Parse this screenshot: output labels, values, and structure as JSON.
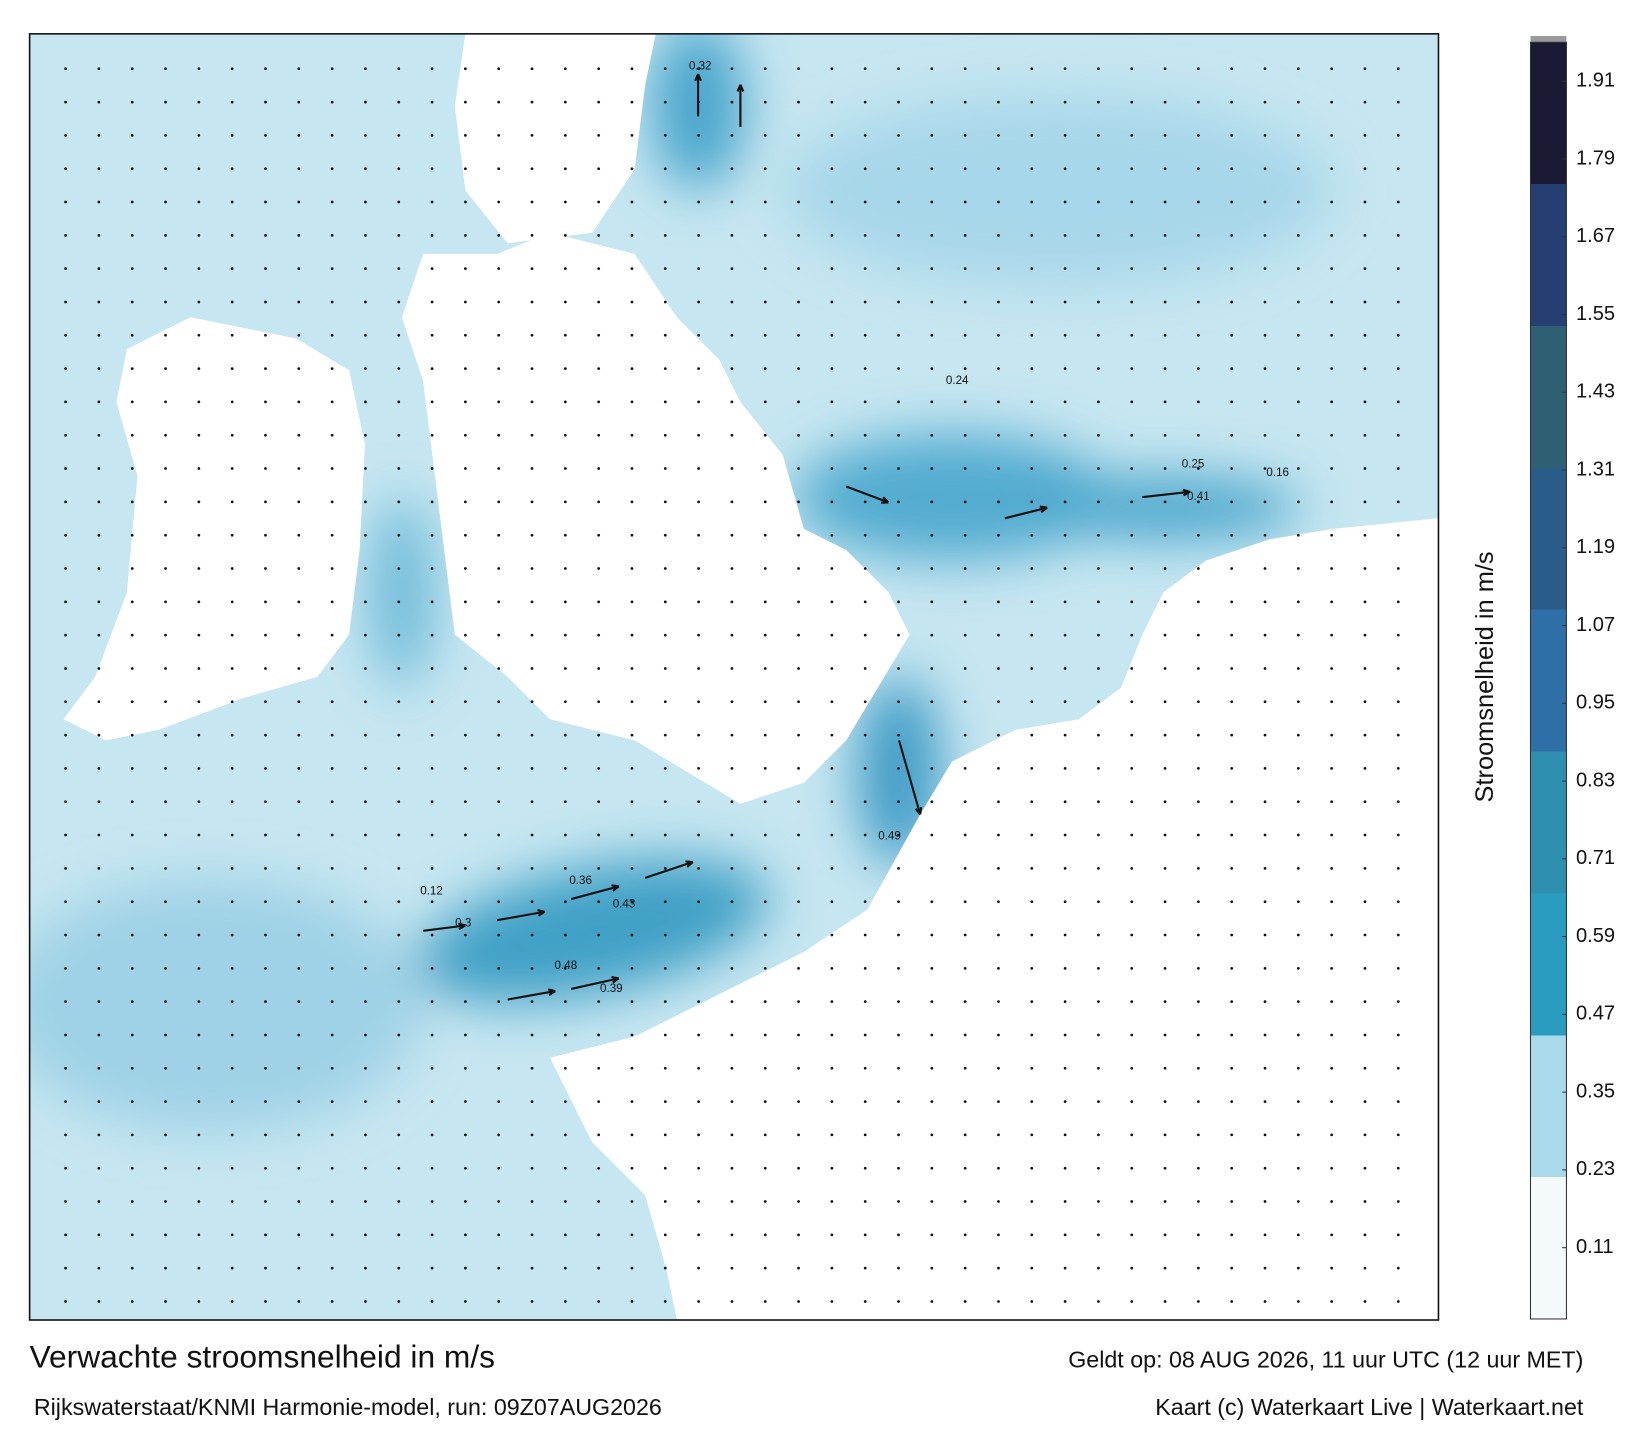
{
  "header": {
    "title": "Verwachte stroomsnelheid in m/s",
    "subtitle": "Rijkswaterstaat/KNMI Harmonie-model, run: 09Z07AUG2026",
    "valid": "Geldt op: 08 AUG 2026, 11 uur UTC (12 uur MET)",
    "credit": "Kaart (c) Waterkaart Live | Waterkaart.net"
  },
  "colorbar": {
    "label": "Stroomsnelheid in m/s",
    "ylim": [
      0,
      1.97
    ],
    "yticks": [
      0.11,
      0.23,
      0.35,
      0.47,
      0.59,
      0.71,
      0.83,
      0.95,
      1.07,
      1.19,
      1.31,
      1.43,
      1.55,
      1.67,
      1.79,
      1.91
    ],
    "colors": [
      "#f4fafc",
      "#a9d9ea",
      "#2a9cc0",
      "#2f8fb0",
      "#2f6fa8",
      "#2a5c8a",
      "#2f5f72",
      "#263f72",
      "#1a1a35"
    ]
  },
  "map_labels": [
    0.41,
    0.43,
    0.48,
    0.49,
    0.36,
    0.39,
    0.32,
    0.24,
    0.25,
    0.3,
    0.12,
    0.16
  ]
}
